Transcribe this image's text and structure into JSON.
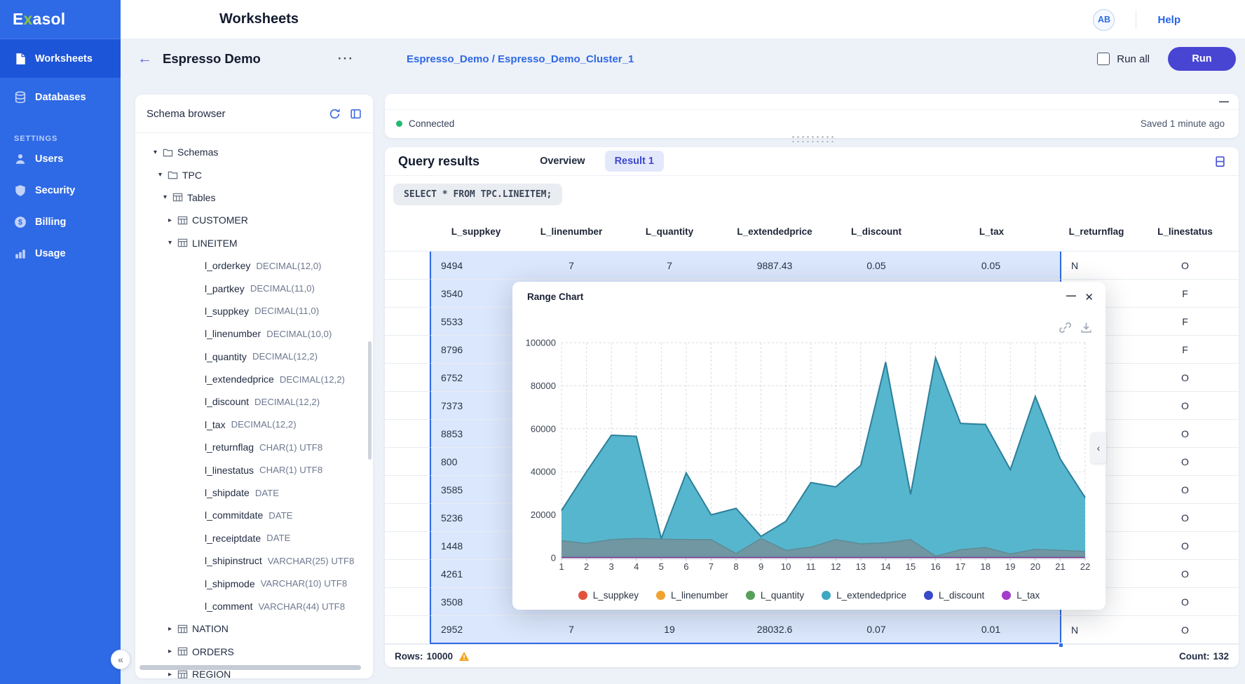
{
  "sidebar": {
    "logo": {
      "part1": "E",
      "part2": "x",
      "part3": "asol"
    },
    "items": [
      {
        "label": "Worksheets"
      },
      {
        "label": "Databases"
      }
    ],
    "settings_label": "SETTINGS",
    "settings_items": [
      {
        "label": "Users"
      },
      {
        "label": "Security"
      },
      {
        "label": "Billing"
      },
      {
        "label": "Usage"
      }
    ],
    "collapse_glyph": "«"
  },
  "header": {
    "title": "Worksheets",
    "avatar": "AB",
    "help": "Help"
  },
  "toolbar": {
    "back_glyph": "←",
    "worksheet_title": "Espresso Demo",
    "menu_glyph": "···",
    "breadcrumb": "Espresso_Demo / Espresso_Demo_Cluster_1",
    "run_all_label": "Run all",
    "run_label": "Run"
  },
  "schema_browser": {
    "title": "Schema browser",
    "tree": [
      {
        "level": 0,
        "caret": "down",
        "icon": "folder",
        "name": "Schemas",
        "type": ""
      },
      {
        "level": 1,
        "caret": "down",
        "icon": "folder",
        "name": "TPC",
        "type": ""
      },
      {
        "level": 2,
        "caret": "down",
        "icon": "grid",
        "name": "Tables",
        "type": ""
      },
      {
        "level": 3,
        "caret": "right",
        "icon": "grid",
        "name": "CUSTOMER",
        "type": ""
      },
      {
        "level": 3,
        "caret": "down",
        "icon": "grid",
        "name": "LINEITEM",
        "type": ""
      },
      {
        "level": 4,
        "caret": "",
        "icon": "",
        "name": "l_orderkey",
        "type": "DECIMAL(12,0)"
      },
      {
        "level": 4,
        "caret": "",
        "icon": "",
        "name": "l_partkey",
        "type": "DECIMAL(11,0)"
      },
      {
        "level": 4,
        "caret": "",
        "icon": "",
        "name": "l_suppkey",
        "type": "DECIMAL(11,0)"
      },
      {
        "level": 4,
        "caret": "",
        "icon": "",
        "name": "l_linenumber",
        "type": "DECIMAL(10,0)"
      },
      {
        "level": 4,
        "caret": "",
        "icon": "",
        "name": "l_quantity",
        "type": "DECIMAL(12,2)"
      },
      {
        "level": 4,
        "caret": "",
        "icon": "",
        "name": "l_extendedprice",
        "type": "DECIMAL(12,2)"
      },
      {
        "level": 4,
        "caret": "",
        "icon": "",
        "name": "l_discount",
        "type": "DECIMAL(12,2)"
      },
      {
        "level": 4,
        "caret": "",
        "icon": "",
        "name": "l_tax",
        "type": "DECIMAL(12,2)"
      },
      {
        "level": 4,
        "caret": "",
        "icon": "",
        "name": "l_returnflag",
        "type": "CHAR(1) UTF8"
      },
      {
        "level": 4,
        "caret": "",
        "icon": "",
        "name": "l_linestatus",
        "type": "CHAR(1) UTF8"
      },
      {
        "level": 4,
        "caret": "",
        "icon": "",
        "name": "l_shipdate",
        "type": "DATE"
      },
      {
        "level": 4,
        "caret": "",
        "icon": "",
        "name": "l_commitdate",
        "type": "DATE"
      },
      {
        "level": 4,
        "caret": "",
        "icon": "",
        "name": "l_receiptdate",
        "type": "DATE"
      },
      {
        "level": 4,
        "caret": "",
        "icon": "",
        "name": "l_shipinstruct",
        "type": "VARCHAR(25) UTF8"
      },
      {
        "level": 4,
        "caret": "",
        "icon": "",
        "name": "l_shipmode",
        "type": "VARCHAR(10) UTF8"
      },
      {
        "level": 4,
        "caret": "",
        "icon": "",
        "name": "l_comment",
        "type": "VARCHAR(44) UTF8"
      },
      {
        "level": 3,
        "caret": "right",
        "icon": "grid",
        "name": "NATION",
        "type": ""
      },
      {
        "level": 3,
        "caret": "right",
        "icon": "grid",
        "name": "ORDERS",
        "type": ""
      },
      {
        "level": 3,
        "caret": "right",
        "icon": "grid",
        "name": "REGION",
        "type": ""
      }
    ]
  },
  "worksheet": {
    "minimize_glyph": "—",
    "status": "Connected",
    "saved": "Saved 1 minute ago"
  },
  "results": {
    "title": "Query results",
    "tabs": [
      {
        "label": "Overview",
        "active": false
      },
      {
        "label": "Result 1",
        "active": true
      }
    ],
    "sql": "SELECT * FROM TPC.LINEITEM;",
    "columns": [
      "",
      "L_suppkey",
      "L_linenumber",
      "L_quantity",
      "L_extendedprice",
      "L_discount",
      "L_tax",
      "L_returnflag",
      "L_linestatus"
    ],
    "rows": [
      [
        "9494",
        "7",
        "7",
        "9887.43",
        "0.05",
        "0.05",
        "N",
        "O"
      ],
      [
        "3540",
        "",
        "",
        "",
        "",
        "",
        "",
        "F"
      ],
      [
        "5533",
        "",
        "",
        "",
        "",
        "",
        "",
        "F"
      ],
      [
        "8796",
        "",
        "",
        "",
        "",
        "",
        "",
        "F"
      ],
      [
        "6752",
        "",
        "",
        "",
        "",
        "",
        "",
        "O"
      ],
      [
        "7373",
        "",
        "",
        "",
        "",
        "",
        "",
        "O"
      ],
      [
        "8853",
        "",
        "",
        "",
        "",
        "",
        "",
        "O"
      ],
      [
        "800",
        "",
        "",
        "",
        "",
        "",
        "",
        "O"
      ],
      [
        "3585",
        "",
        "",
        "",
        "",
        "",
        "",
        "O"
      ],
      [
        "5236",
        "",
        "",
        "",
        "",
        "",
        "",
        "O"
      ],
      [
        "1448",
        "",
        "",
        "",
        "",
        "",
        "",
        "O"
      ],
      [
        "4261",
        "",
        "",
        "",
        "",
        "",
        "",
        "O"
      ],
      [
        "3508",
        "",
        "",
        "",
        "",
        "",
        "",
        "O"
      ],
      [
        "2952",
        "7",
        "19",
        "28032.6",
        "0.07",
        "0.01",
        "N",
        "O"
      ]
    ],
    "rows_label": "Rows:",
    "rows_value": "10000",
    "count_label": "Count:",
    "count_value": "132"
  },
  "modal": {
    "title": "Range Chart",
    "minimize_glyph": "—",
    "close_glyph": "✕",
    "chevron_glyph": "‹"
  },
  "chart_data": {
    "type": "area",
    "title": "Range Chart",
    "x": [
      1,
      2,
      3,
      4,
      5,
      6,
      7,
      8,
      9,
      10,
      11,
      12,
      13,
      14,
      15,
      16,
      17,
      18,
      19,
      20,
      21,
      22
    ],
    "ylim": [
      0,
      100000
    ],
    "yticks": [
      0,
      20000,
      40000,
      60000,
      80000,
      100000
    ],
    "grid": true,
    "legend_position": "bottom",
    "series": [
      {
        "name": "L_suppkey",
        "legend_color": "#e2543a",
        "plot": {
          "z": 2,
          "fill": "#7097a2",
          "stroke": "#5e8b96",
          "stroke_width": 1.5
        },
        "values": [
          8000,
          6700,
          8500,
          9000,
          8700,
          8500,
          8500,
          2000,
          9000,
          3500,
          5000,
          8500,
          6500,
          7000,
          8500,
          800,
          3800,
          4800,
          1800,
          4000,
          3500,
          3000
        ]
      },
      {
        "name": "L_linenumber",
        "legend_color": "#f0a22e",
        "values": [
          0,
          0,
          0,
          0,
          0,
          0,
          0,
          0,
          0,
          0,
          0,
          0,
          0,
          0,
          0,
          0,
          0,
          0,
          0,
          0,
          0,
          0
        ]
      },
      {
        "name": "L_quantity",
        "legend_color": "#57a05c",
        "values": [
          0,
          0,
          0,
          0,
          0,
          0,
          0,
          0,
          0,
          0,
          0,
          0,
          0,
          0,
          0,
          0,
          0,
          0,
          0,
          0,
          0,
          0
        ]
      },
      {
        "name": "L_extendedprice",
        "legend_color": "#3fa7c2",
        "plot": {
          "z": 1,
          "fill": "#56b6ce",
          "stroke": "#2c7f99",
          "stroke_width": 2
        },
        "values": [
          22000,
          40000,
          57000,
          56500,
          9000,
          39500,
          20000,
          23000,
          10000,
          17000,
          35000,
          33000,
          43000,
          91000,
          29500,
          93000,
          62500,
          62000,
          41000,
          75000,
          46000,
          28000
        ]
      },
      {
        "name": "L_discount",
        "legend_color": "#3949c8",
        "values": [
          0,
          0,
          0,
          0,
          0,
          0,
          0,
          0,
          0,
          0,
          0,
          0,
          0,
          0,
          0,
          0,
          0,
          0,
          0,
          0,
          0,
          0
        ]
      },
      {
        "name": "L_tax",
        "legend_color": "#a43bc9",
        "plot": {
          "z": 3,
          "stroke": "#7a2e8f",
          "stroke_width": 2.4
        },
        "values": [
          0,
          0,
          0,
          0,
          0,
          0,
          0,
          0,
          0,
          0,
          0,
          0,
          0,
          0,
          0,
          0,
          0,
          0,
          0,
          0,
          0,
          0
        ]
      }
    ]
  }
}
